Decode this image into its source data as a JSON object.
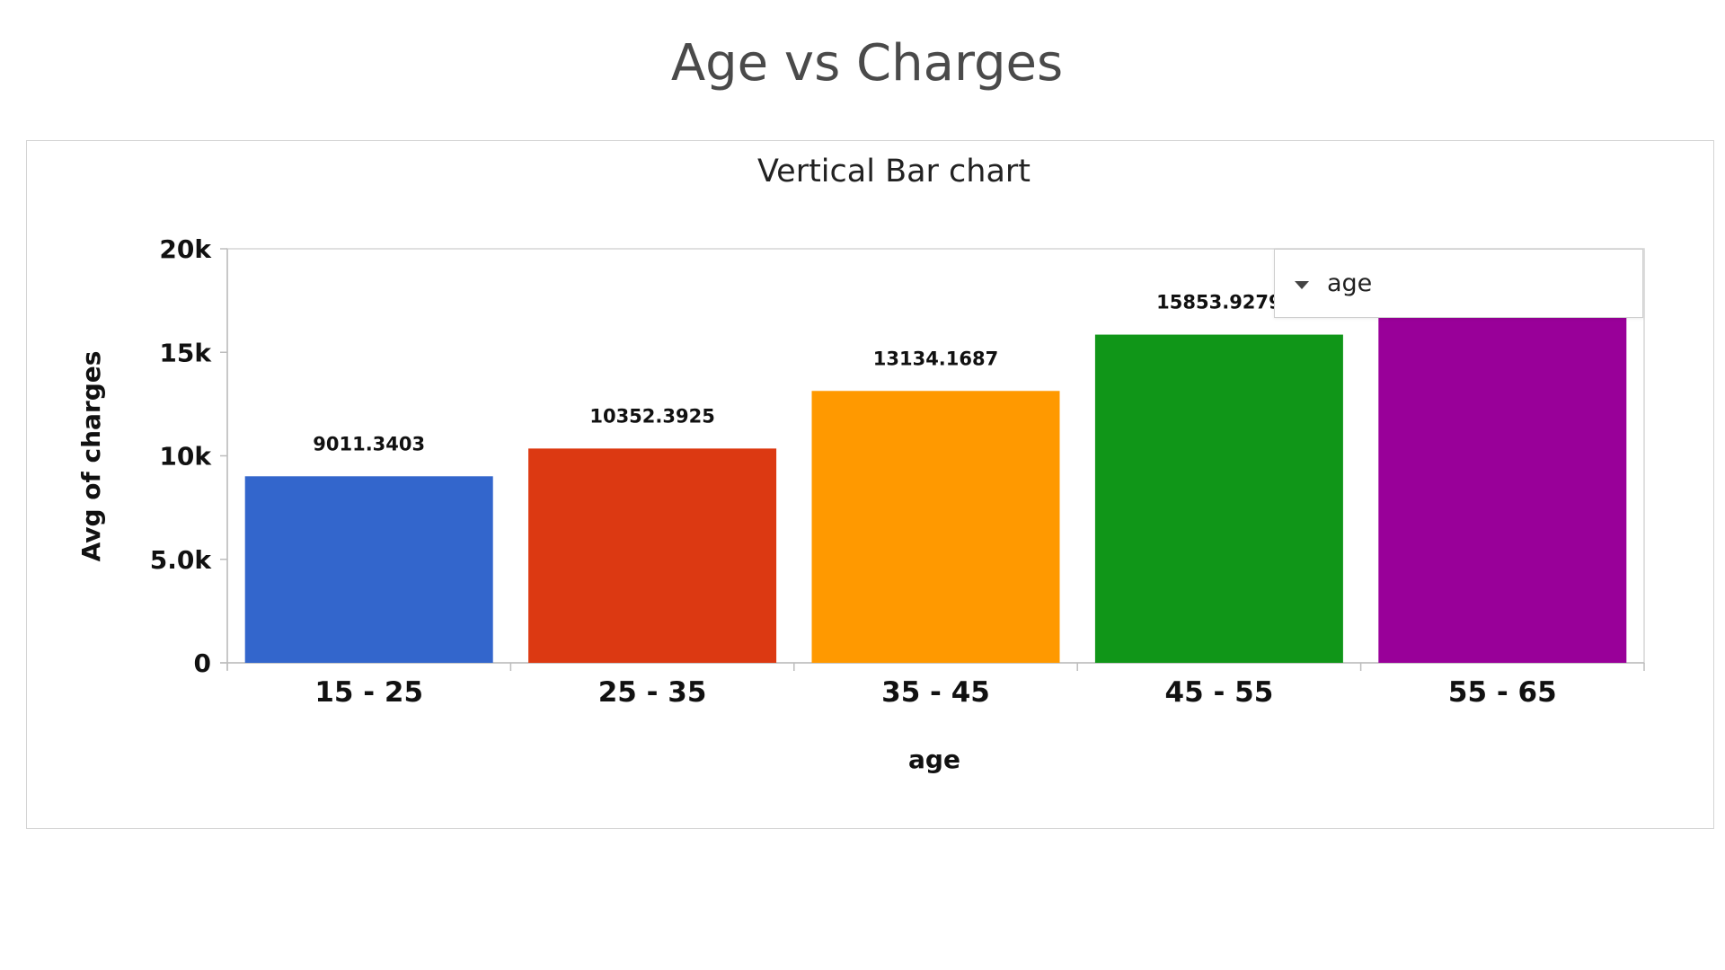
{
  "page": {
    "title": "Age vs Charges"
  },
  "legend": {
    "field": "age",
    "icon": "caret-down-icon"
  },
  "chart_data": {
    "type": "bar",
    "title": "Vertical Bar chart",
    "xlabel": "age",
    "ylabel": "Avg of charges",
    "categories": [
      "15 - 25",
      "25 - 35",
      "35 - 45",
      "45 - 55",
      "55 - 65"
    ],
    "values": [
      9011.3403,
      10352.3925,
      13134.1687,
      15853.9279,
      16700
    ],
    "data_labels": [
      "9011.3403",
      "10352.3925",
      "13134.1687",
      "15853.9279",
      ""
    ],
    "colors": [
      "#3366cc",
      "#dc3912",
      "#ff9900",
      "#109618",
      "#990099"
    ],
    "ylim": [
      0,
      20000
    ],
    "yticks": [
      0,
      5000,
      10000,
      15000,
      20000
    ],
    "ytick_labels": [
      "0",
      "5.0k",
      "10k",
      "15k",
      "20k"
    ],
    "grid": false,
    "legend_position": "top-right"
  }
}
